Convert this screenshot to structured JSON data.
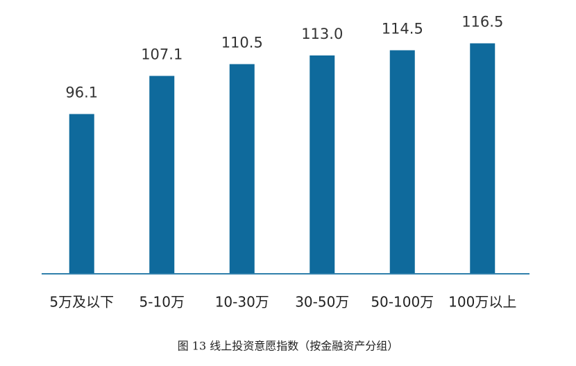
{
  "chart_data": {
    "type": "bar",
    "title": "图 13 线上投资意愿指数（按金融资产分组）",
    "categories": [
      "5万及以下",
      "5-10万",
      "10-30万",
      "30-50万",
      "50-100万",
      "100万以上"
    ],
    "values": [
      96.1,
      107.1,
      110.5,
      113.0,
      114.5,
      116.5
    ],
    "value_labels": [
      "96.1",
      "107.1",
      "110.5",
      "113.0",
      "114.5",
      "116.5"
    ],
    "color": "#0f6a9c",
    "ylim": [
      50,
      120
    ]
  }
}
